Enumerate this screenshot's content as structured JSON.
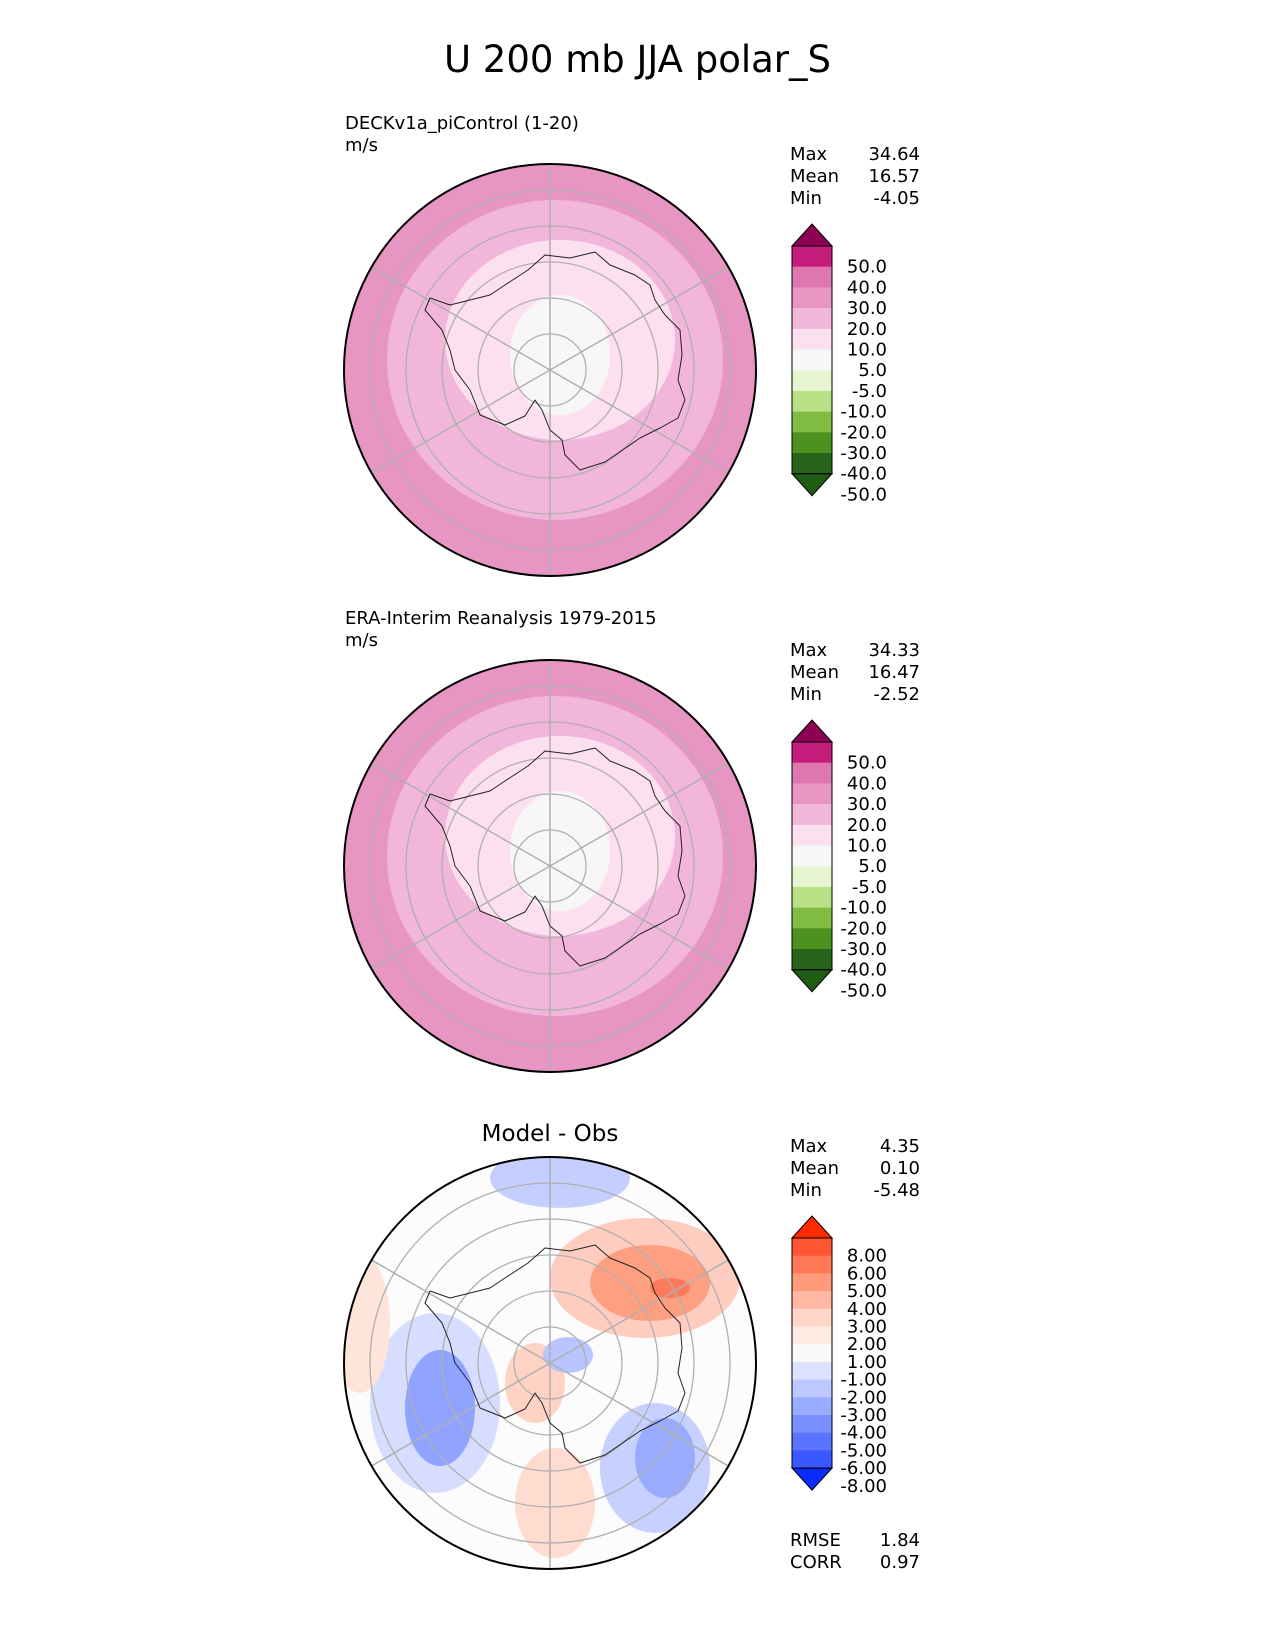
{
  "title": "U 200 mb JJA polar_S",
  "panels": [
    {
      "name": "DECKv1a_piControl (1-20)",
      "units": "m/s",
      "stats": [
        {
          "label": "Max",
          "value": "34.64"
        },
        {
          "label": "Mean",
          "value": "16.57"
        },
        {
          "label": "Min",
          "value": "-4.05"
        }
      ]
    },
    {
      "name": "ERA-Interim Reanalysis 1979-2015",
      "units": "m/s",
      "stats": [
        {
          "label": "Max",
          "value": "34.33"
        },
        {
          "label": "Mean",
          "value": "16.47"
        },
        {
          "label": "Min",
          "value": "-2.52"
        }
      ]
    },
    {
      "name": "Model - Obs",
      "stats": [
        {
          "label": "Max",
          "value": "4.35"
        },
        {
          "label": "Mean",
          "value": "0.10"
        },
        {
          "label": "Min",
          "value": "-5.48"
        }
      ],
      "metrics": [
        {
          "label": "RMSE",
          "value": "1.84"
        },
        {
          "label": "CORR",
          "value": "0.97"
        }
      ]
    }
  ],
  "chart_data": [
    {
      "type": "heatmap",
      "projection": "south polar stereographic",
      "title": "DECKv1a_piControl (1-20)",
      "units": "m/s",
      "levels": [
        "50.0",
        "40.0",
        "30.0",
        "20.0",
        "10.0",
        "5.0",
        "-5.0",
        "-10.0",
        "-20.0",
        "-30.0",
        "-40.0",
        "-50.0"
      ],
      "colors": [
        "#8e0152",
        "#c51b7d",
        "#de77ae",
        "#e796c3",
        "#f1b6da",
        "#fde0ef",
        "#f7f7f7",
        "#e6f5d0",
        "#b8e186",
        "#7fbc41",
        "#4d9221",
        "#276419",
        "#1f5c14"
      ],
      "max": 34.64,
      "mean": 16.57,
      "min": -4.05
    },
    {
      "type": "heatmap",
      "projection": "south polar stereographic",
      "title": "ERA-Interim Reanalysis 1979-2015",
      "units": "m/s",
      "levels": [
        "50.0",
        "40.0",
        "30.0",
        "20.0",
        "10.0",
        "5.0",
        "-5.0",
        "-10.0",
        "-20.0",
        "-30.0",
        "-40.0",
        "-50.0"
      ],
      "colors": [
        "#8e0152",
        "#c51b7d",
        "#de77ae",
        "#e796c3",
        "#f1b6da",
        "#fde0ef",
        "#f7f7f7",
        "#e6f5d0",
        "#b8e186",
        "#7fbc41",
        "#4d9221",
        "#276419",
        "#1f5c14"
      ],
      "max": 34.33,
      "mean": 16.47,
      "min": -2.52
    },
    {
      "type": "heatmap",
      "projection": "south polar stereographic",
      "title": "Model - Obs",
      "levels": [
        "8.00",
        "6.00",
        "5.00",
        "4.00",
        "3.00",
        "2.00",
        "1.00",
        "-1.00",
        "-2.00",
        "-3.00",
        "-4.00",
        "-5.00",
        "-6.00",
        "-8.00"
      ],
      "colors": [
        "#ff2a00",
        "#ff5533",
        "#ff7755",
        "#ff9a7a",
        "#ffb9a3",
        "#ffd6c8",
        "#fdebe4",
        "#fafafa",
        "#dde3ff",
        "#bcc8ff",
        "#9aacff",
        "#7a90ff",
        "#5a74ff",
        "#3a58ff",
        "#0b2cff"
      ],
      "max": 4.35,
      "mean": 0.1,
      "min": -5.48,
      "rmse": 1.84,
      "corr": 0.97
    }
  ]
}
